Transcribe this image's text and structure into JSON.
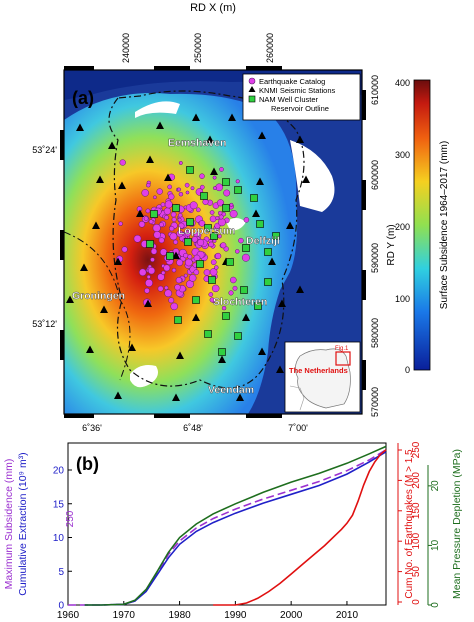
{
  "map_panel": {
    "label": "(a)",
    "top_axis_title": "RD X (m)",
    "top_ticks": [
      "240000",
      "250000",
      "260000"
    ],
    "right_axis_title": "RD Y (m)",
    "right_ticks": [
      "610000",
      "600000",
      "590000",
      "580000",
      "570000"
    ],
    "left_ticks": [
      "53˚24'",
      "53˚12'"
    ],
    "bottom_ticks": [
      "6˚36'",
      "6˚48'",
      "7˚00'"
    ],
    "places": [
      "Eemshaven",
      "Loppersum",
      "Delfzijl",
      "Groningen",
      "Slochteren",
      "Veendam"
    ],
    "legend": [
      "Earthquake Catalog",
      "KNMI Seismic Stations",
      "NAM Well Cluster",
      "Reservoir Outline"
    ],
    "inset_label": "The Netherlands",
    "inset_box_label": "Fig.1",
    "colorbar": {
      "title": "Surface Subsidence 1964–2017 (mm)",
      "ticks": [
        "400",
        "300",
        "200",
        "100",
        "0"
      ],
      "range": [
        0,
        400
      ]
    }
  },
  "chart_data": {
    "type": "line",
    "label": "(b)",
    "x_ticks": [
      "1960",
      "1970",
      "1980",
      "1990",
      "2000",
      "2010"
    ],
    "xlim": [
      1960,
      2017
    ],
    "left_axis_labels": [
      "Maximum Subsidence (mm)",
      "Cumulative Extraction (10⁹ m³)"
    ],
    "left_ticks": [
      "0",
      "5",
      "10",
      "15",
      "20"
    ],
    "left_annotation": "250",
    "right_axis_red": "Cum No. of Earthquakes (M > 1.5",
    "right_ticks_red": [
      "0",
      "50",
      "100",
      "150",
      "200",
      "250"
    ],
    "right_axis_green": "Mean Pressure Depletion (MPa)",
    "right_ticks_green": [
      "0",
      "10",
      "20"
    ],
    "colors": {
      "subsidence": "#9b30d0",
      "extraction": "#2020c8",
      "pressure": "#1e6e1e",
      "earthquakes": "#e01010"
    },
    "series": [
      {
        "key": "subsidence",
        "style": "dashed",
        "x": [
          1960,
          1966,
          1970,
          1972,
          1974,
          1976,
          1978,
          1980,
          1983,
          1986,
          1990,
          1995,
          2000,
          2005,
          2010,
          2014,
          2017
        ],
        "y": [
          0,
          0,
          0.1,
          0.6,
          2.2,
          4.8,
          7.5,
          9.5,
          11.4,
          12.8,
          14.2,
          15.7,
          17.0,
          18.3,
          19.9,
          21.5,
          23.0
        ]
      },
      {
        "key": "extraction",
        "style": "solid",
        "x": [
          1963,
          1966,
          1970,
          1972,
          1974,
          1976,
          1978,
          1980,
          1983,
          1986,
          1990,
          1995,
          2000,
          2005,
          2010,
          2014,
          2017
        ],
        "y": [
          0,
          0,
          0.1,
          0.6,
          2.0,
          4.5,
          7.0,
          9.0,
          10.9,
          12.2,
          13.6,
          15.1,
          16.4,
          17.7,
          19.4,
          21.2,
          22.7
        ]
      },
      {
        "key": "pressure",
        "style": "solid",
        "x": [
          1963,
          1966,
          1970,
          1972,
          1974,
          1976,
          1978,
          1980,
          1983,
          1986,
          1990,
          1995,
          2000,
          2005,
          2010,
          2014,
          2017
        ],
        "y": [
          0,
          0,
          0.1,
          0.7,
          2.3,
          5.0,
          7.8,
          10.0,
          12.0,
          13.5,
          15.0,
          16.7,
          18.2,
          19.5,
          21.0,
          22.4,
          23.5
        ]
      },
      {
        "key": "earthquakes",
        "style": "solid",
        "x": [
          1986,
          1990,
          1992,
          1994,
          1996,
          1998,
          2000,
          2002,
          2004,
          2006,
          2008,
          2009,
          2010,
          2011,
          2012,
          2013,
          2014,
          2015,
          2016,
          2017
        ],
        "y": [
          0,
          0,
          0.3,
          1.0,
          2.0,
          3.2,
          4.6,
          6.0,
          7.4,
          8.8,
          10.4,
          11.2,
          12.1,
          13.3,
          15.4,
          17.8,
          19.8,
          21.2,
          22.3,
          23.0
        ]
      }
    ]
  }
}
